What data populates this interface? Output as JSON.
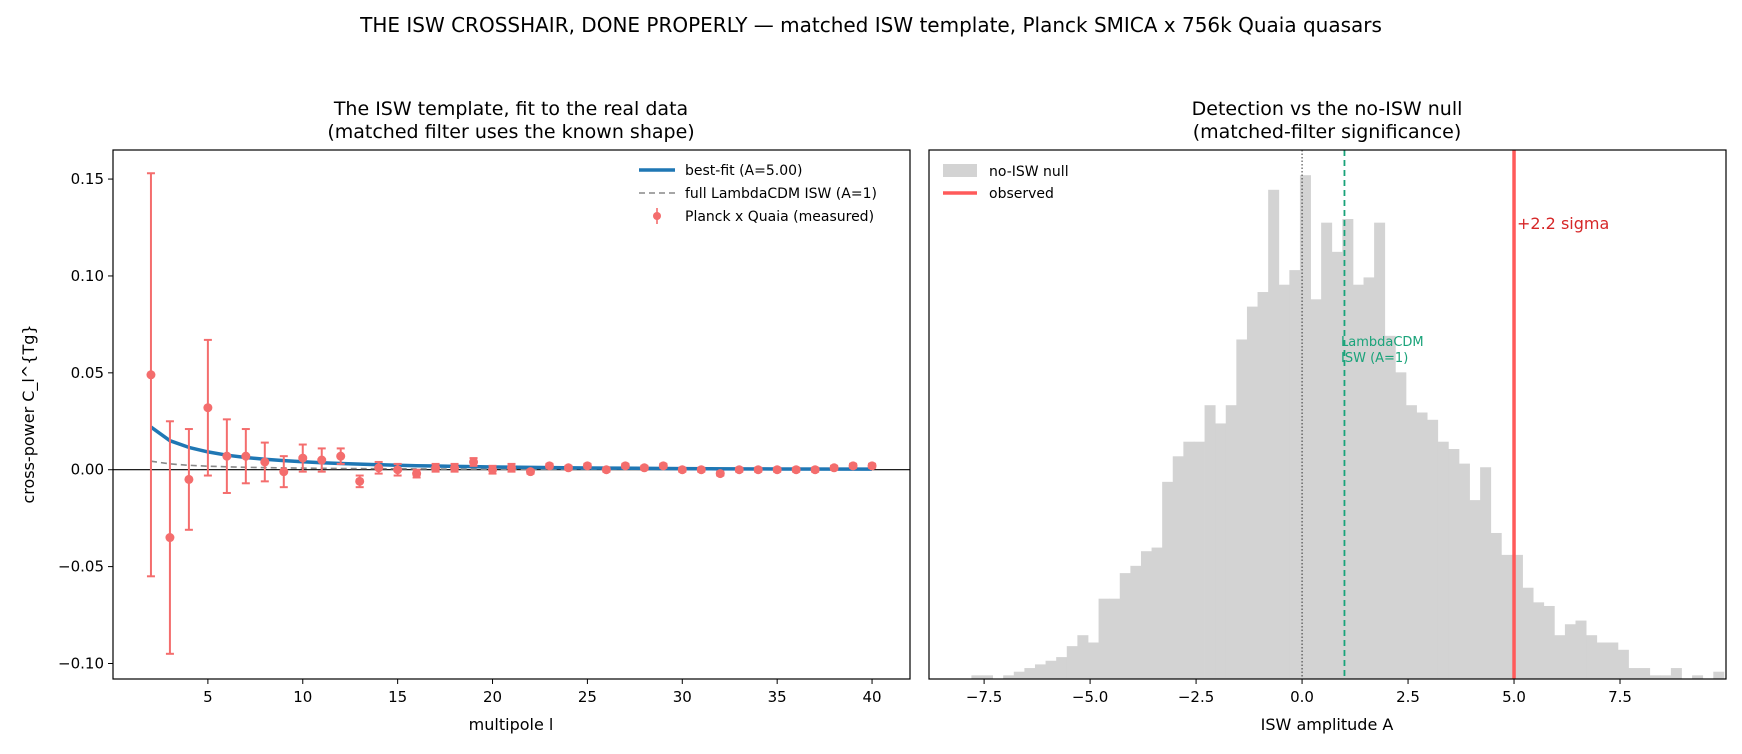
{
  "suptitle": "THE ISW CROSSHAIR, DONE PROPERLY — matched ISW template, Planck SMICA x 756k Quaia quasars",
  "colors": {
    "measured": "#f46d6d",
    "bestfit": "#1f77b4",
    "lcdm": "#888888",
    "hist": "#d3d3d3",
    "observed": "#ff5a5a",
    "lcdm_line": "#1aa37a",
    "sigma_text": "#d62728"
  },
  "left_panel": {
    "title_line1": "The ISW template, fit to the real data",
    "title_line2": "(matched filter uses the known shape)",
    "xlabel": "multipole  l",
    "ylabel": "cross-power  C_l^{Tg}",
    "legend": {
      "bestfit": "best-fit (A=5.00)",
      "lcdm": "full LambdaCDM ISW (A=1)",
      "measured": "Planck x Quaia (measured)"
    }
  },
  "right_panel": {
    "title_line1": "Detection vs the no-ISW null",
    "title_line2": "(matched-filter significance)",
    "xlabel": "ISW amplitude  A",
    "legend": {
      "null": "no-ISW null",
      "observed": "observed"
    },
    "annotation": "+2.2 sigma",
    "lcdm_label_line1": "LambdaCDM",
    "lcdm_label_line2": "ISW (A=1)"
  },
  "chart_data": [
    {
      "type": "scatter",
      "title": "The ISW template, fit to the real data (matched filter uses the known shape)",
      "xlabel": "multipole  l",
      "ylabel": "cross-power  C_l^{Tg}",
      "xlim": [
        0,
        42
      ],
      "ylim": [
        -0.108,
        0.165
      ],
      "xticks": [
        5,
        10,
        15,
        20,
        25,
        30,
        35,
        40
      ],
      "xtick_labels": [
        "5",
        "10",
        "15",
        "20",
        "25",
        "30",
        "35",
        "40"
      ],
      "yticks": [
        -0.1,
        -0.05,
        0.0,
        0.05,
        0.1,
        0.15
      ],
      "ytick_labels": [
        "−0.10",
        "−0.05",
        "0.00",
        "0.05",
        "0.10",
        "0.15"
      ],
      "legend_position": "upper right",
      "grid": false,
      "zero_line": true,
      "series": [
        {
          "name": "Planck x Quaia (measured)",
          "kind": "errorbar",
          "x": [
            2,
            3,
            4,
            5,
            6,
            7,
            8,
            9,
            10,
            11,
            12,
            13,
            14,
            15,
            16,
            17,
            18,
            19,
            20,
            21,
            22,
            23,
            24,
            25,
            26,
            27,
            28,
            29,
            30,
            31,
            32,
            33,
            34,
            35,
            36,
            37,
            38,
            39,
            40
          ],
          "y": [
            0.049,
            -0.035,
            -0.005,
            0.032,
            0.007,
            0.007,
            0.004,
            -0.001,
            0.006,
            0.005,
            0.007,
            -0.006,
            0.001,
            0.0,
            -0.002,
            0.001,
            0.001,
            0.004,
            0.0,
            0.001,
            -0.001,
            0.002,
            0.001,
            0.002,
            0.0,
            0.002,
            0.001,
            0.002,
            0.0,
            0.0,
            -0.002,
            0.0,
            0.0,
            0.0,
            0.0,
            0.0,
            0.001,
            0.002,
            0.002
          ],
          "yerr": [
            0.104,
            0.06,
            0.026,
            0.035,
            0.019,
            0.014,
            0.01,
            0.008,
            0.007,
            0.006,
            0.004,
            0.003,
            0.003,
            0.003,
            0.002,
            0.002,
            0.002,
            0.002,
            0.002,
            0.002,
            0.001,
            0.001,
            0.001,
            0.001,
            0.001,
            0.001,
            0.001,
            0.001,
            0.001,
            0.001,
            0.001,
            0.001,
            0.001,
            0.001,
            0.001,
            0.001,
            0.001,
            0.001,
            0.001
          ]
        },
        {
          "name": "best-fit (A=5.00)",
          "kind": "line",
          "x": [
            2,
            3,
            4,
            5,
            6,
            7,
            8,
            9,
            10,
            11,
            12,
            13,
            14,
            15,
            16,
            17,
            18,
            19,
            20,
            22,
            25,
            30,
            35,
            40
          ],
          "y": [
            0.022,
            0.015,
            0.0115,
            0.0092,
            0.0075,
            0.0063,
            0.0054,
            0.0047,
            0.0041,
            0.0036,
            0.0032,
            0.0029,
            0.0026,
            0.0023,
            0.0021,
            0.0019,
            0.0017,
            0.0016,
            0.0014,
            0.0012,
            0.0009,
            0.0006,
            0.0004,
            0.0003
          ]
        },
        {
          "name": "full LambdaCDM ISW (A=1)",
          "kind": "dashed-line",
          "x": [
            2,
            3,
            4,
            5,
            6,
            7,
            8,
            9,
            10,
            11,
            12,
            13,
            14,
            15,
            16,
            17,
            18,
            19,
            20,
            22,
            25,
            30,
            35,
            40
          ],
          "y": [
            0.0044,
            0.003,
            0.0023,
            0.00184,
            0.0015,
            0.00126,
            0.00108,
            0.00094,
            0.00082,
            0.00072,
            0.00064,
            0.00058,
            0.00052,
            0.00046,
            0.00042,
            0.00038,
            0.00034,
            0.00032,
            0.00028,
            0.00024,
            0.00018,
            0.00012,
            8e-05,
            6e-05
          ]
        }
      ]
    },
    {
      "type": "histogram",
      "title": "Detection vs the no-ISW null (matched-filter significance)",
      "xlabel": "ISW amplitude  A",
      "ylabel": "",
      "xlim": [
        -8.8,
        10.0
      ],
      "xticks": [
        -7.5,
        -5.0,
        -2.5,
        0.0,
        2.5,
        5.0,
        7.5
      ],
      "xtick_labels": [
        "−7.5",
        "−5.0",
        "−2.5",
        "0.0",
        "2.5",
        "5.0",
        "7.5"
      ],
      "show_yaxis": false,
      "legend_position": "upper left",
      "bins_start": -7.8,
      "bin_width": 0.25,
      "counts": [
        1,
        1,
        0,
        1,
        2,
        3,
        4,
        5,
        6,
        9,
        12,
        10,
        22,
        22,
        29,
        31,
        35,
        36,
        54,
        61,
        65,
        65,
        75,
        70,
        75,
        93,
        102,
        106,
        134,
        108,
        112,
        138,
        104,
        125,
        117,
        126,
        108,
        110,
        125,
        94,
        84,
        75,
        73,
        71,
        65,
        63,
        59,
        49,
        58,
        40,
        34,
        34,
        25,
        21,
        20,
        12,
        15,
        16,
        12,
        10,
        10,
        8,
        3,
        3,
        1,
        1,
        3,
        0,
        1,
        0,
        2,
        0,
        0,
        0,
        0,
        0,
        0,
        0,
        1
      ],
      "series": [
        {
          "name": "no-ISW null",
          "kind": "histogram"
        },
        {
          "name": "observed",
          "kind": "vline",
          "x": 5.0
        },
        {
          "name": "LambdaCDM ISW (A=1)",
          "kind": "dashed-vline",
          "x": 1.0
        },
        {
          "name": "zero",
          "kind": "dotted-vline",
          "x": 0.0
        }
      ],
      "annotations": [
        {
          "text": "+2.2 sigma",
          "x": 5.15,
          "at": "upper"
        },
        {
          "text": "LambdaCDM ISW (A=1)",
          "x": 1.0,
          "at": "middle"
        }
      ]
    }
  ]
}
